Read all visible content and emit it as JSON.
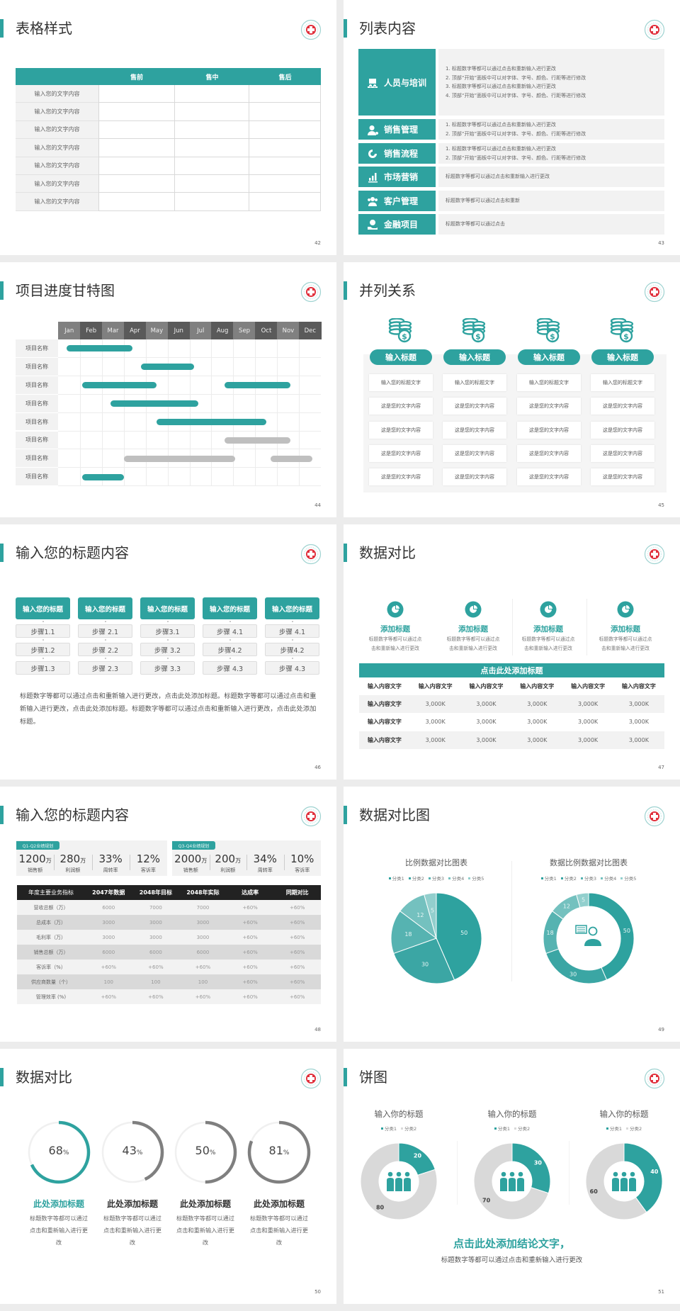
{
  "colors": {
    "accent": "#2ea29f",
    "dark_header": "#222222",
    "planned_bar": "#bfbfbf",
    "light_fill": "#f2f2f2",
    "ring_gray": "#7f7f7f",
    "donut_gray": "#d9d9d9"
  },
  "s42": {
    "title": "表格样式",
    "page": "42",
    "columns": [
      "",
      "售前",
      "售中",
      "售后"
    ],
    "rows": [
      "输入您的文字内容",
      "输入您的文字内容",
      "输入您的文字内容",
      "输入您的文字内容",
      "输入您的文字内容",
      "输入您的文字内容",
      "输入您的文字内容"
    ]
  },
  "s43": {
    "title": "列表内容",
    "page": "43",
    "items": [
      {
        "label": "人员与培训",
        "icon": "people-training-icon",
        "lines": [
          "1.  标题数字等都可以通过点击和重新输入进行更改",
          "2.  顶部“开始”面板中可以对字体、字号、颜色、行距等进行修改",
          "3.  标题数字等都可以通过点击和重新输入进行更改",
          "4.  顶部“开始”面板中可以对字体、字号、颜色、行距等进行修改"
        ]
      },
      {
        "label": "销售管理",
        "icon": "user-gear-icon",
        "lines": [
          "1.  标题数字等都可以通过点击和重新输入进行更改",
          "2.  顶部“开始”面板中可以对字体、字号、颜色、行距等进行修改"
        ]
      },
      {
        "label": "销售流程",
        "icon": "cycle-icon",
        "lines": [
          "1.  标题数字等都可以通过点击和重新输入进行更改",
          "2.  顶部“开始”面板中可以对字体、字号、颜色、行距等进行修改"
        ]
      },
      {
        "label": "市场营销",
        "icon": "bar-chart-icon",
        "lines": [
          "标题数字等都可以通过点击和重新输入进行更改"
        ]
      },
      {
        "label": "客户管理",
        "icon": "users-icon",
        "lines": [
          "标题数字等都可以通过点击和重新"
        ]
      },
      {
        "label": "金融项目",
        "icon": "money-hand-icon",
        "lines": [
          "标题数字等都可以通过点击"
        ]
      }
    ]
  },
  "s44": {
    "title": "项目进度甘特图",
    "page": "44",
    "months": [
      "Jan",
      "Feb",
      "Mar",
      "Apr",
      "May",
      "Jun",
      "Jul",
      "Aug",
      "Sep",
      "Oct",
      "Nov",
      "Dec"
    ],
    "tasks": [
      {
        "name": "项目名称",
        "bars": [
          {
            "start": 0.4,
            "end": 3.4,
            "status": "active"
          }
        ]
      },
      {
        "name": "项目名称",
        "bars": [
          {
            "start": 3.8,
            "end": 6.2,
            "status": "active"
          }
        ]
      },
      {
        "name": "项目名称",
        "bars": [
          {
            "start": 1.1,
            "end": 4.5,
            "status": "active"
          },
          {
            "start": 7.6,
            "end": 10.6,
            "status": "active"
          }
        ]
      },
      {
        "name": "项目名称",
        "bars": [
          {
            "start": 2.4,
            "end": 6.4,
            "status": "active"
          }
        ]
      },
      {
        "name": "项目名称",
        "bars": [
          {
            "start": 4.5,
            "end": 9.5,
            "status": "active"
          }
        ]
      },
      {
        "name": "项目名称",
        "bars": [
          {
            "start": 7.6,
            "end": 10.6,
            "status": "planned"
          }
        ]
      },
      {
        "name": "项目名称",
        "bars": [
          {
            "start": 3.0,
            "end": 8.1,
            "status": "planned"
          },
          {
            "start": 9.7,
            "end": 11.6,
            "status": "planned"
          }
        ]
      },
      {
        "name": "项目名称",
        "bars": [
          {
            "start": 1.1,
            "end": 3.0,
            "status": "active"
          }
        ]
      }
    ]
  },
  "s45": {
    "title": "并列关系",
    "page": "45",
    "icon": "coins-dollar-icon",
    "columns": [
      {
        "heading": "输入标题",
        "cells": [
          "输入您的标题文字",
          "这是您的文字内容",
          "这是您的文字内容",
          "这是您的文字内容",
          "这是您的文字内容"
        ]
      },
      {
        "heading": "输入标题",
        "cells": [
          "输入您的标题文字",
          "这是您的文字内容",
          "这是您的文字内容",
          "这是您的文字内容",
          "这是您的文字内容"
        ]
      },
      {
        "heading": "输入标题",
        "cells": [
          "输入您的标题文字",
          "这是您的文字内容",
          "这是您的文字内容",
          "这是您的文字内容",
          "这是您的文字内容"
        ]
      },
      {
        "heading": "输入标题",
        "cells": [
          "输入您的标题文字",
          "这是您的文字内容",
          "这是您的文字内容",
          "这是您的文字内容",
          "这是您的文字内容"
        ]
      }
    ]
  },
  "s46": {
    "title": "输入您的标题内容",
    "page": "46",
    "columns": [
      {
        "heading": "输入您的标题",
        "steps": [
          "步骤1.1",
          "步骤1.2",
          "步骤1.3"
        ]
      },
      {
        "heading": "输入您的标题",
        "steps": [
          "步骤 2.1",
          "步骤 2.2",
          "步骤 2.3"
        ]
      },
      {
        "heading": "输入您的标题",
        "steps": [
          "步骤3.1",
          "步骤 3.2",
          "步骤 3.3"
        ]
      },
      {
        "heading": "输入您的标题",
        "steps": [
          "步骤 4.1",
          "步骤4.2",
          "步骤 4.3"
        ]
      },
      {
        "heading": "输入您的标题",
        "steps": [
          "步骤 4.1",
          "步骤4.2",
          "步骤 4.3"
        ]
      }
    ],
    "paragraph": "标题数字等都可以通过点击和重新输入进行更改，点击此处添加标题。标题数字等都可以通过点击和重新输入进行更改，点击此处添加标题。标题数字等都可以通过点击和重新输入进行更改，点击此处添加标题。"
  },
  "s47": {
    "title": "数据对比",
    "page": "47",
    "features": [
      {
        "title": "添加标题",
        "desc": [
          "标题数字等都可以通过点",
          "击和重新输入进行更改"
        ]
      },
      {
        "title": "添加标题",
        "desc": [
          "标题数字等都可以通过点",
          "击和重新输入进行更改"
        ]
      },
      {
        "title": "添加标题",
        "desc": [
          "标题数字等都可以通过点",
          "击和重新输入进行更改"
        ]
      },
      {
        "title": "添加标题",
        "desc": [
          "标题数字等都可以通过点",
          "击和重新输入进行更改"
        ]
      }
    ],
    "table": {
      "caption": "点击此处添加标题",
      "header": [
        "输入内容文字",
        "输入内容文字",
        "输入内容文字",
        "输入内容文字",
        "输入内容文字",
        "输入内容文字"
      ],
      "rows": [
        [
          "输入内容文字",
          "3,000K",
          "3,000K",
          "3,000K",
          "3,000K",
          "3,000K"
        ],
        [
          "输入内容文字",
          "3,000K",
          "3,000K",
          "3,000K",
          "3,000K",
          "3,000K"
        ],
        [
          "输入内容文字",
          "3,000K",
          "3,000K",
          "3,000K",
          "3,000K",
          "3,000K"
        ]
      ]
    }
  },
  "s48": {
    "title": "输入您的标题内容",
    "page": "48",
    "kpi_groups": [
      {
        "tag": "Q1-Q2业绩规划",
        "items": [
          {
            "value": "1200",
            "unit": "万",
            "label": "销售额"
          },
          {
            "value": "280",
            "unit": "万",
            "label": "利润额"
          },
          {
            "value": "33%",
            "unit": "",
            "label": "周转率"
          },
          {
            "value": "12%",
            "unit": "",
            "label": "客诉率"
          }
        ]
      },
      {
        "tag": "Q3-Q4业绩规划",
        "items": [
          {
            "value": "2000",
            "unit": "万",
            "label": "销售额"
          },
          {
            "value": "200",
            "unit": "万",
            "label": "利润额"
          },
          {
            "value": "34%",
            "unit": "",
            "label": "周转率"
          },
          {
            "value": "10%",
            "unit": "",
            "label": "客诉率"
          }
        ]
      }
    ],
    "table": {
      "header": [
        "年度主要业务指标",
        "2047年数据",
        "2048年目标",
        "2048年实际",
        "达成率",
        "同期对比"
      ],
      "rows": [
        [
          "营收总额（万）",
          "6000",
          "7000",
          "7000",
          "+60%",
          "+60%"
        ],
        [
          "总成本（万）",
          "3000",
          "3000",
          "3000",
          "+60%",
          "+60%"
        ],
        [
          "毛利率（万）",
          "3000",
          "3000",
          "3000",
          "+60%",
          "+60%"
        ],
        [
          "销售总额（万）",
          "6000",
          "6000",
          "6000",
          "+60%",
          "+60%"
        ],
        [
          "客诉率（%）",
          "+60%",
          "+60%",
          "+60%",
          "+60%",
          "+60%"
        ],
        [
          "供应商数量（个）",
          "100",
          "100",
          "100",
          "+60%",
          "+60%"
        ],
        [
          "管理效率 (%)",
          "+60%",
          "+60%",
          "+60%",
          "+60%",
          "+60%"
        ]
      ]
    }
  },
  "s49": {
    "title": "数据对比图",
    "page": "49",
    "center_icon": "consultant-icon"
  },
  "s50": {
    "title": "数据对比",
    "page": "50",
    "rings": [
      {
        "percent": 68,
        "value": "68",
        "unit": "%",
        "title": "此处添加标题",
        "desc": "标题数字等都可以通过点击和重新输入进行更改",
        "color": "#2ea29f"
      },
      {
        "percent": 43,
        "value": "43",
        "unit": "%",
        "title": "此处添加标题",
        "desc": "标题数字等都可以通过点击和重新输入进行更改",
        "color": "#7f7f7f"
      },
      {
        "percent": 50,
        "value": "50",
        "unit": "%",
        "title": "此处添加标题",
        "desc": "标题数字等都可以通过点击和重新输入进行更改",
        "color": "#7f7f7f"
      },
      {
        "percent": 81,
        "value": "81",
        "unit": "%",
        "title": "此处添加标题",
        "desc": "标题数字等都可以通过点击和重新输入进行更改",
        "color": "#7f7f7f"
      }
    ]
  },
  "s51": {
    "title": "饼图",
    "page": "51",
    "center_icon": "team-icon",
    "conclusion": "点击此处添加结论文字，",
    "subtext": "标题数字等都可以通过点击和重新输入进行更改"
  },
  "chart_data": [
    {
      "type": "pie",
      "title": "比例数据对比图表",
      "categories": [
        "分类1",
        "分类2",
        "分类3",
        "分类4",
        "分类5"
      ],
      "values": [
        50,
        30,
        18,
        12,
        5
      ],
      "colors": [
        "#2ea29f",
        "#3ba6a4",
        "#56b3b1",
        "#74c1bf",
        "#92cfcd"
      ],
      "legend": "top"
    },
    {
      "type": "donut",
      "title": "数据比例数据对比图表",
      "categories": [
        "分类1",
        "分类2",
        "分类3",
        "分类4",
        "分类5"
      ],
      "values": [
        50,
        30,
        18,
        12,
        5
      ],
      "colors": [
        "#2ea29f",
        "#3ba6a4",
        "#56b3b1",
        "#74c1bf",
        "#92cfcd"
      ],
      "legend": "top"
    },
    {
      "type": "donut",
      "title": "输入你的标题",
      "categories": [
        "分类1",
        "分类2"
      ],
      "values": [
        20,
        80
      ],
      "colors": [
        "#2ea29f",
        "#d9d9d9"
      ],
      "legend": "top"
    },
    {
      "type": "donut",
      "title": "输入你的标题",
      "categories": [
        "分类1",
        "分类2"
      ],
      "values": [
        30,
        70
      ],
      "colors": [
        "#2ea29f",
        "#d9d9d9"
      ],
      "legend": "top"
    },
    {
      "type": "donut",
      "title": "输入你的标题",
      "categories": [
        "分类1",
        "分类2"
      ],
      "values": [
        40,
        60
      ],
      "colors": [
        "#2ea29f",
        "#d9d9d9"
      ],
      "legend": "top"
    }
  ]
}
